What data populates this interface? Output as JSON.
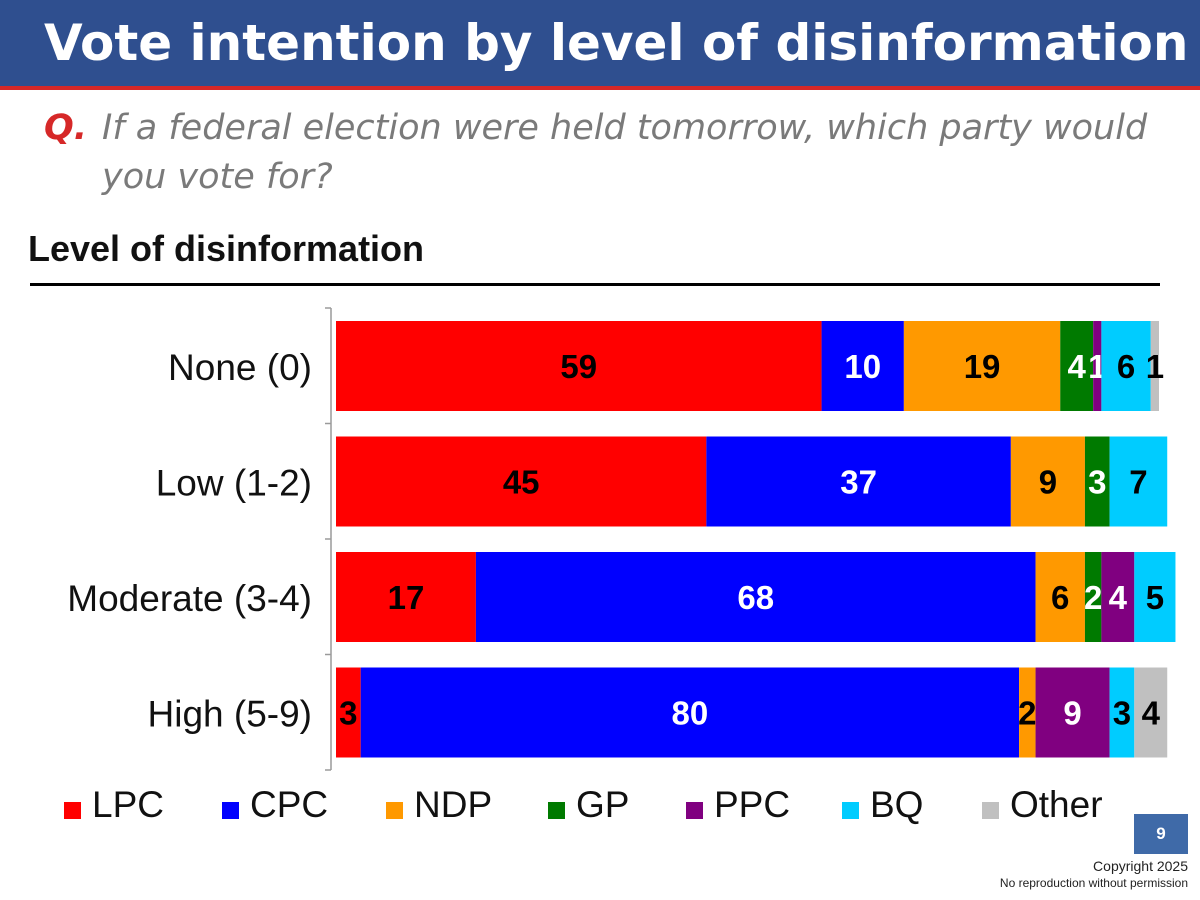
{
  "header": {
    "title": "Vote intention by level of disinformation"
  },
  "question": {
    "prefix": "Q.",
    "text": "If a federal election were held tomorrow, which party would you vote for?"
  },
  "section": {
    "heading": "Level of disinformation"
  },
  "chart_data": {
    "type": "bar",
    "orientation": "horizontal",
    "stacked": true,
    "title": "Level of disinformation",
    "categories": [
      "None (0)",
      "Low (1-2)",
      "Moderate (3-4)",
      "High (5-9)"
    ],
    "series": [
      {
        "name": "LPC",
        "color": "#ff0000",
        "label_color": "#000000",
        "values": [
          59,
          45,
          17,
          3
        ]
      },
      {
        "name": "CPC",
        "color": "#0000ff",
        "label_color": "#ffffff",
        "values": [
          10,
          37,
          68,
          80
        ]
      },
      {
        "name": "NDP",
        "color": "#ff9900",
        "label_color": "#000000",
        "values": [
          19,
          9,
          6,
          2
        ]
      },
      {
        "name": "GP",
        "color": "#007a00",
        "label_color": "#ffffff",
        "values": [
          4,
          3,
          2,
          0
        ]
      },
      {
        "name": "PPC",
        "color": "#800080",
        "label_color": "#ffffff",
        "values": [
          1,
          0,
          4,
          9
        ]
      },
      {
        "name": "BQ",
        "color": "#00ccff",
        "label_color": "#000000",
        "values": [
          6,
          7,
          5,
          3
        ]
      },
      {
        "name": "Other",
        "color": "#c0c0c0",
        "label_color": "#000000",
        "values": [
          1,
          0,
          0,
          4
        ]
      }
    ],
    "xlim": [
      0,
      100
    ],
    "legend_position": "bottom"
  },
  "legend": {
    "items": [
      {
        "label": "LPC",
        "color": "#ff0000"
      },
      {
        "label": "CPC",
        "color": "#0000ff"
      },
      {
        "label": "NDP",
        "color": "#ff9900"
      },
      {
        "label": "GP",
        "color": "#007a00"
      },
      {
        "label": "PPC",
        "color": "#800080"
      },
      {
        "label": "BQ",
        "color": "#00ccff"
      },
      {
        "label": "Other",
        "color": "#c0c0c0"
      }
    ]
  },
  "footer": {
    "page_number": "9",
    "copyright": "Copyright 2025",
    "notice": "No reproduction without permission"
  },
  "colors": {
    "title_bar": "#2f4f8f",
    "accent_red": "#d62828",
    "page_box": "#3f6aa8"
  }
}
